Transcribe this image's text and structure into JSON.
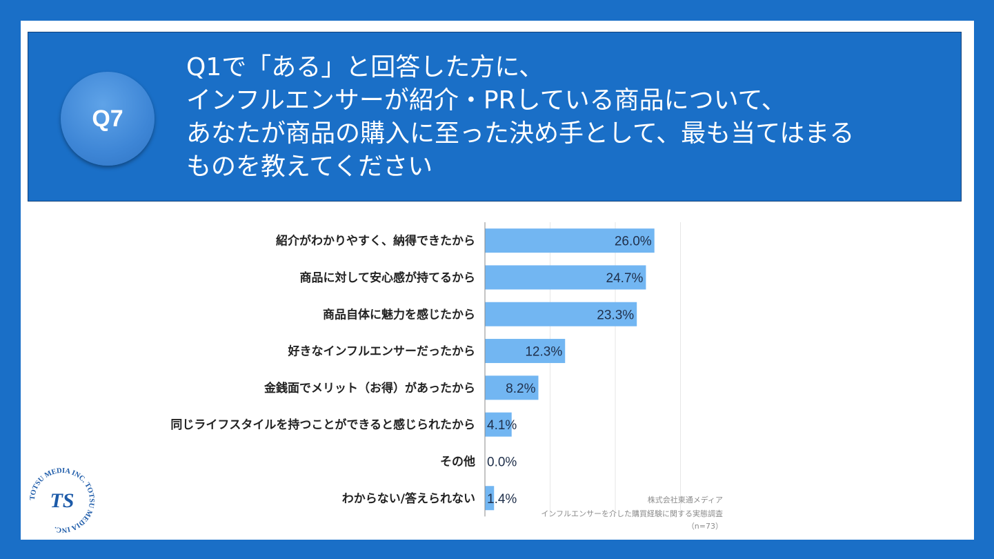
{
  "header": {
    "badge": "Q7",
    "question_lines": [
      "Q1で「ある」と回答した方に、",
      "インフルエンサーが紹介・PRしている商品について、",
      "あなたが商品の購入に至った決め手として、最も当てはまる",
      "ものを教えてください"
    ]
  },
  "chart_data": {
    "type": "bar",
    "orientation": "horizontal",
    "categories": [
      "紹介がわかりやすく、納得できたから",
      "商品に対して安心感が持てるから",
      "商品自体に魅力を感じたから",
      "好きなインフルエンサーだったから",
      "金銭面でメリット（お得）があったから",
      "同じライフスタイルを持つことができると感じられたから",
      "その他",
      "わからない/答えられない"
    ],
    "values": [
      26.0,
      24.7,
      23.3,
      12.3,
      8.2,
      4.1,
      0.0,
      1.4
    ],
    "value_labels": [
      "26.0%",
      "24.7%",
      "23.3%",
      "12.3%",
      "8.2%",
      "4.1%",
      "0.0%",
      "1.4%"
    ],
    "xlim": [
      0,
      35
    ],
    "grid": true,
    "bar_color": "#72b6f2",
    "source": [
      "株式会社東通メディア",
      "インフルエンサーを介した購買経験に関する実態調査",
      "（n=73）"
    ]
  },
  "logo": {
    "text": "TOTSU MEDIA INC. TOTSU MEDIA INC.",
    "mark": "TS",
    "color": "#1c5aa8"
  },
  "colors": {
    "frame": "#1a6fc7",
    "header": "#1a6fc7"
  }
}
